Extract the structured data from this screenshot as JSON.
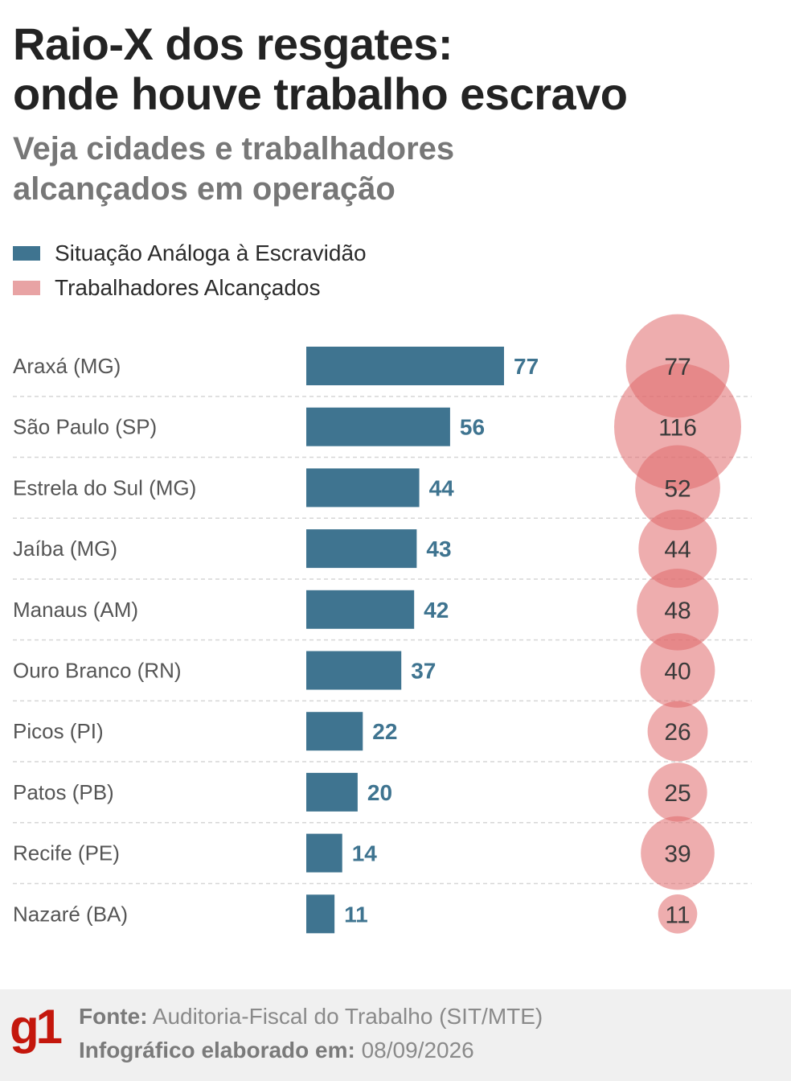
{
  "title_line1": "Raio-X dos resgates:",
  "title_line2": "onde houve trabalho escravo",
  "subtitle_line1": "Veja cidades e trabalhadores",
  "subtitle_line2": "alcançados em operação",
  "colors": {
    "bar": "#3f7490",
    "bar_label": "#3f7490",
    "bubble": "#e0696c",
    "grid": "#d6d6d6",
    "logo": "#c4170c"
  },
  "legend": [
    {
      "label": "Situação Análoga à Escravidão",
      "color": "#3f7490"
    },
    {
      "label": "Trabalhadores Alcançados",
      "color": "#e8a3a4"
    }
  ],
  "chart_data": {
    "type": "bar",
    "categories": [
      "Araxá (MG)",
      "São Paulo (SP)",
      "Estrela do Sul (MG)",
      "Jaíba (MG)",
      "Manaus (AM)",
      "Ouro Branco (RN)",
      "Picos (PI)",
      "Patos (PB)",
      "Recife (PE)",
      "Nazaré (BA)"
    ],
    "series": [
      {
        "name": "Situação Análoga à Escravidão",
        "values": [
          77,
          56,
          44,
          43,
          42,
          37,
          22,
          20,
          14,
          11
        ]
      },
      {
        "name": "Trabalhadores Alcançados",
        "values": [
          77,
          116,
          52,
          44,
          48,
          40,
          26,
          25,
          39,
          11
        ]
      }
    ],
    "xlabel": "",
    "ylabel": "",
    "legend_position": "top-left",
    "grid": "dashed horizontal separators"
  },
  "footer": {
    "logo": "g1",
    "source_label": "Fonte:",
    "source_text": "Auditoria-Fiscal do Trabalho (SIT/MTE)",
    "date_label": "Infográfico elaborado em:",
    "date_text": "08/09/2026"
  }
}
